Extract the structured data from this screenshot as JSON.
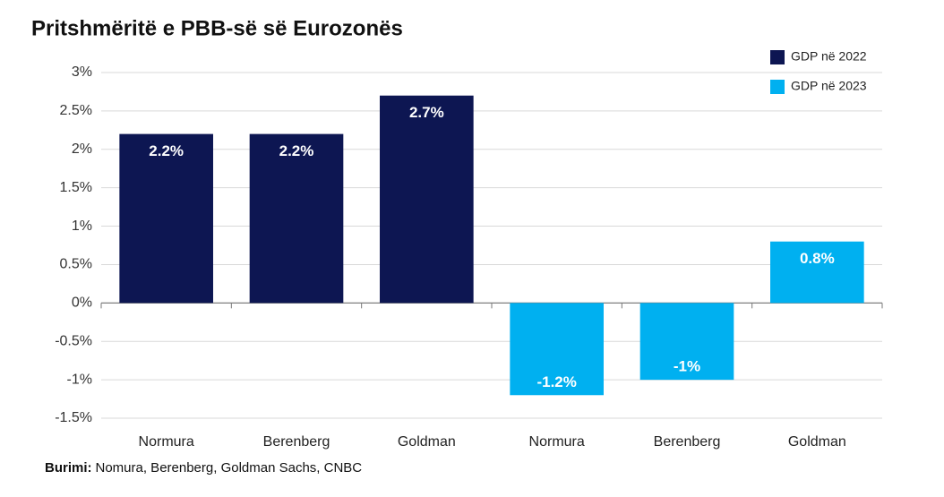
{
  "chart_data": {
    "type": "bar",
    "title": "Pritshmëritë e PBB-së së Eurozonës",
    "categories": [
      "Normura",
      "Berenberg",
      "Goldman",
      "Normura",
      "Berenberg",
      "Goldman"
    ],
    "series": [
      {
        "name": "GDP në 2022",
        "color": "#0d1652",
        "values": [
          2.2,
          2.2,
          2.7,
          null,
          null,
          null
        ],
        "value_labels": [
          "2.2%",
          "2.2%",
          "2.7%",
          null,
          null,
          null
        ]
      },
      {
        "name": "GDP në 2023",
        "color": "#00b0f0",
        "values": [
          null,
          null,
          null,
          -1.2,
          -1,
          0.8
        ],
        "value_labels": [
          null,
          null,
          null,
          "-1.2%",
          "-1%",
          "0.8%"
        ]
      }
    ],
    "ylim": [
      -1.5,
      3
    ],
    "yticks": [
      {
        "value": -1.5,
        "label": "-1.5%"
      },
      {
        "value": -1,
        "label": "-1%"
      },
      {
        "value": -0.5,
        "label": "-0.5%"
      },
      {
        "value": 0,
        "label": "0%"
      },
      {
        "value": 0.5,
        "label": "0.5%"
      },
      {
        "value": 1,
        "label": "1%"
      },
      {
        "value": 1.5,
        "label": "1.5%"
      },
      {
        "value": 2,
        "label": "2%"
      },
      {
        "value": 2.5,
        "label": "2.5%"
      },
      {
        "value": 3,
        "label": "3%"
      }
    ],
    "grid": true,
    "legend": "top-right",
    "source": {
      "label": "Burimi:",
      "text": "Nomura, Berenberg, Goldman Sachs, CNBC"
    }
  }
}
